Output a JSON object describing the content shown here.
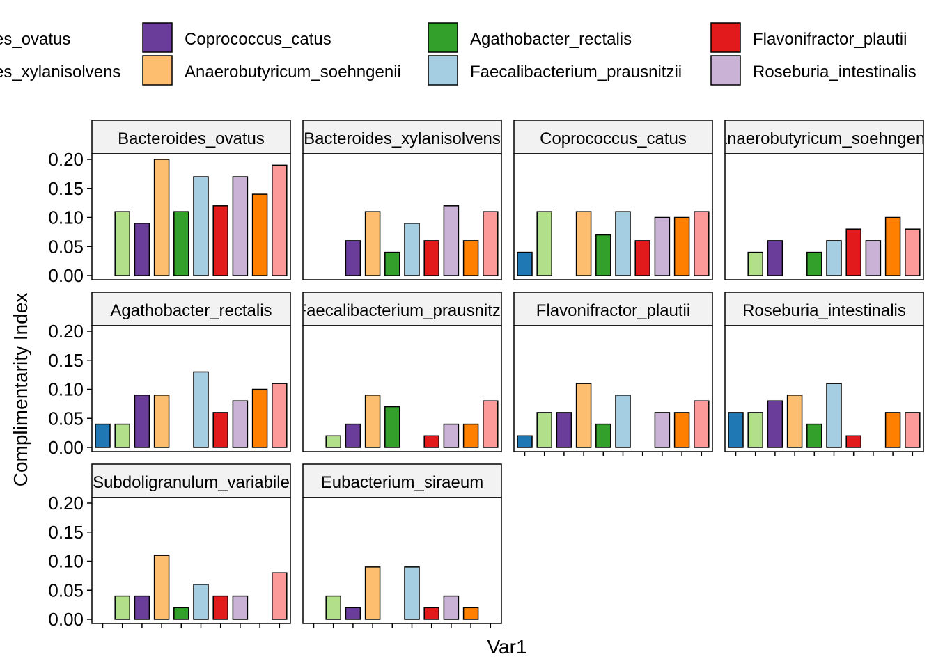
{
  "chart_data": {
    "type": "bar",
    "facet_layout": "wrap",
    "xlabel": "Var1",
    "ylabel": "Complimentarity Index",
    "ylim": [
      0,
      0.2
    ],
    "yticks": [
      0.0,
      0.05,
      0.1,
      0.15,
      0.2
    ],
    "ytick_labels": [
      "0.00",
      "0.05",
      "0.10",
      "0.15",
      "0.20"
    ],
    "legend_position": "top",
    "categories": [
      "Bacteroides_ovatus",
      "Bacteroides_xylanisolvens",
      "Coprococcus_catus",
      "Anaerobutyricum_soehngenii",
      "Agathobacter_rectalis",
      "Faecalibacterium_prausnitzii",
      "Flavonifractor_plautii",
      "Roseburia_intestinalis",
      "Subdoligranulum_variabile",
      "Eubacterium_siraeum"
    ],
    "category_colors": [
      "#1F78B4",
      "#B2DF8A",
      "#6A3D9A",
      "#FDBF6F",
      "#33A02C",
      "#A6CEE3",
      "#E31A1C",
      "#CAB2D6",
      "#FF7F00",
      "#FB9A99"
    ],
    "legend": {
      "entries": [
        {
          "label": "es_ovatus",
          "color": "#1F78B4"
        },
        {
          "label": "es_xylanisolvens",
          "color": "#B2DF8A"
        },
        {
          "label": "Coprococcus_catus",
          "color": "#6A3D9A"
        },
        {
          "label": "Anaerobutyricum_soehngenii",
          "color": "#FDBF6F"
        },
        {
          "label": "Agathobacter_rectalis",
          "color": "#33A02C"
        },
        {
          "label": "Faecalibacterium_prausnitzii",
          "color": "#A6CEE3"
        },
        {
          "label": "Flavonifractor_plautii",
          "color": "#E31A1C"
        },
        {
          "label": "Roseburia_intestinalis",
          "color": "#CAB2D6"
        }
      ]
    },
    "panels": [
      {
        "title": "Bacteroides_ovatus",
        "values": [
          0.0,
          0.11,
          0.09,
          0.2,
          0.11,
          0.17,
          0.12,
          0.17,
          0.14,
          0.19
        ]
      },
      {
        "title": "Bacteroides_xylanisolvens",
        "values": [
          0.0,
          0.0,
          0.06,
          0.11,
          0.04,
          0.09,
          0.06,
          0.12,
          0.06,
          0.11
        ]
      },
      {
        "title": "Coprococcus_catus",
        "values": [
          0.04,
          0.11,
          0.0,
          0.11,
          0.07,
          0.11,
          0.06,
          0.1,
          0.1,
          0.11
        ]
      },
      {
        "title": "Anaerobutyricum_soehngenii",
        "values": [
          0.0,
          0.04,
          0.06,
          0.0,
          0.04,
          0.06,
          0.08,
          0.06,
          0.1,
          0.08
        ]
      },
      {
        "title": "Agathobacter_rectalis",
        "values": [
          0.04,
          0.04,
          0.09,
          0.09,
          0.0,
          0.13,
          0.06,
          0.08,
          0.1,
          0.11
        ]
      },
      {
        "title": "Faecalibacterium_prausnitzii",
        "values": [
          0.0,
          0.02,
          0.04,
          0.09,
          0.07,
          0.0,
          0.02,
          0.04,
          0.04,
          0.08
        ]
      },
      {
        "title": "Flavonifractor_plautii",
        "values": [
          0.02,
          0.06,
          0.06,
          0.11,
          0.04,
          0.09,
          0.0,
          0.06,
          0.06,
          0.08
        ]
      },
      {
        "title": "Roseburia_intestinalis",
        "values": [
          0.06,
          0.06,
          0.08,
          0.09,
          0.04,
          0.11,
          0.02,
          0.0,
          0.06,
          0.06
        ]
      },
      {
        "title": "Subdoligranulum_variabile",
        "values": [
          0.0,
          0.04,
          0.04,
          0.11,
          0.02,
          0.06,
          0.04,
          0.04,
          0.0,
          0.08
        ]
      },
      {
        "title": "Eubacterium_siraeum",
        "values": [
          0.0,
          0.04,
          0.02,
          0.09,
          0.0,
          0.09,
          0.02,
          0.04,
          0.02,
          0.0
        ]
      }
    ]
  }
}
